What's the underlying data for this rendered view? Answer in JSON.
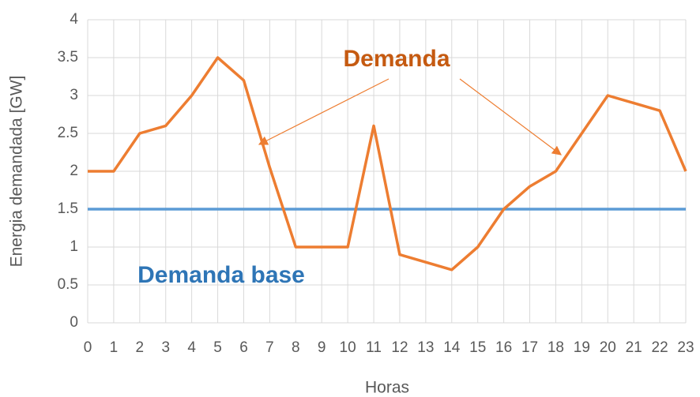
{
  "chart_data": {
    "type": "line",
    "x": [
      0,
      1,
      2,
      3,
      4,
      5,
      6,
      7,
      8,
      9,
      10,
      11,
      12,
      13,
      14,
      15,
      16,
      17,
      18,
      19,
      20,
      21,
      22,
      23
    ],
    "xlim": [
      0,
      23
    ],
    "xticks": [
      0,
      1,
      2,
      3,
      4,
      5,
      6,
      7,
      8,
      9,
      10,
      11,
      12,
      13,
      14,
      15,
      16,
      17,
      18,
      19,
      20,
      21,
      22,
      23
    ],
    "ylim": [
      0,
      4
    ],
    "yticks": [
      0,
      0.5,
      1,
      1.5,
      2,
      2.5,
      3,
      3.5,
      4
    ],
    "grid": true,
    "x_label": "Horas",
    "y_label": "Energia demandada [GW]",
    "annotations": [
      {
        "text": "Demanda",
        "color": "#c55a11"
      },
      {
        "text": "Demanda base",
        "color": "#2e75b6"
      }
    ],
    "series": [
      {
        "name": "Demanda",
        "color": "#ed7d31",
        "values": [
          2,
          2,
          2.5,
          2.6,
          3,
          3.5,
          3.2,
          2.05,
          1,
          1,
          1,
          2.6,
          0.9,
          0.8,
          0.7,
          1,
          1.5,
          1.8,
          2,
          2.5,
          3,
          2.9,
          2.8,
          2
        ]
      },
      {
        "name": "Demanda base",
        "color": "#5b9bd5",
        "values": [
          1.5,
          1.5,
          1.5,
          1.5,
          1.5,
          1.5,
          1.5,
          1.5,
          1.5,
          1.5,
          1.5,
          1.5,
          1.5,
          1.5,
          1.5,
          1.5,
          1.5,
          1.5,
          1.5,
          1.5,
          1.5,
          1.5,
          1.5,
          1.5
        ]
      }
    ]
  }
}
